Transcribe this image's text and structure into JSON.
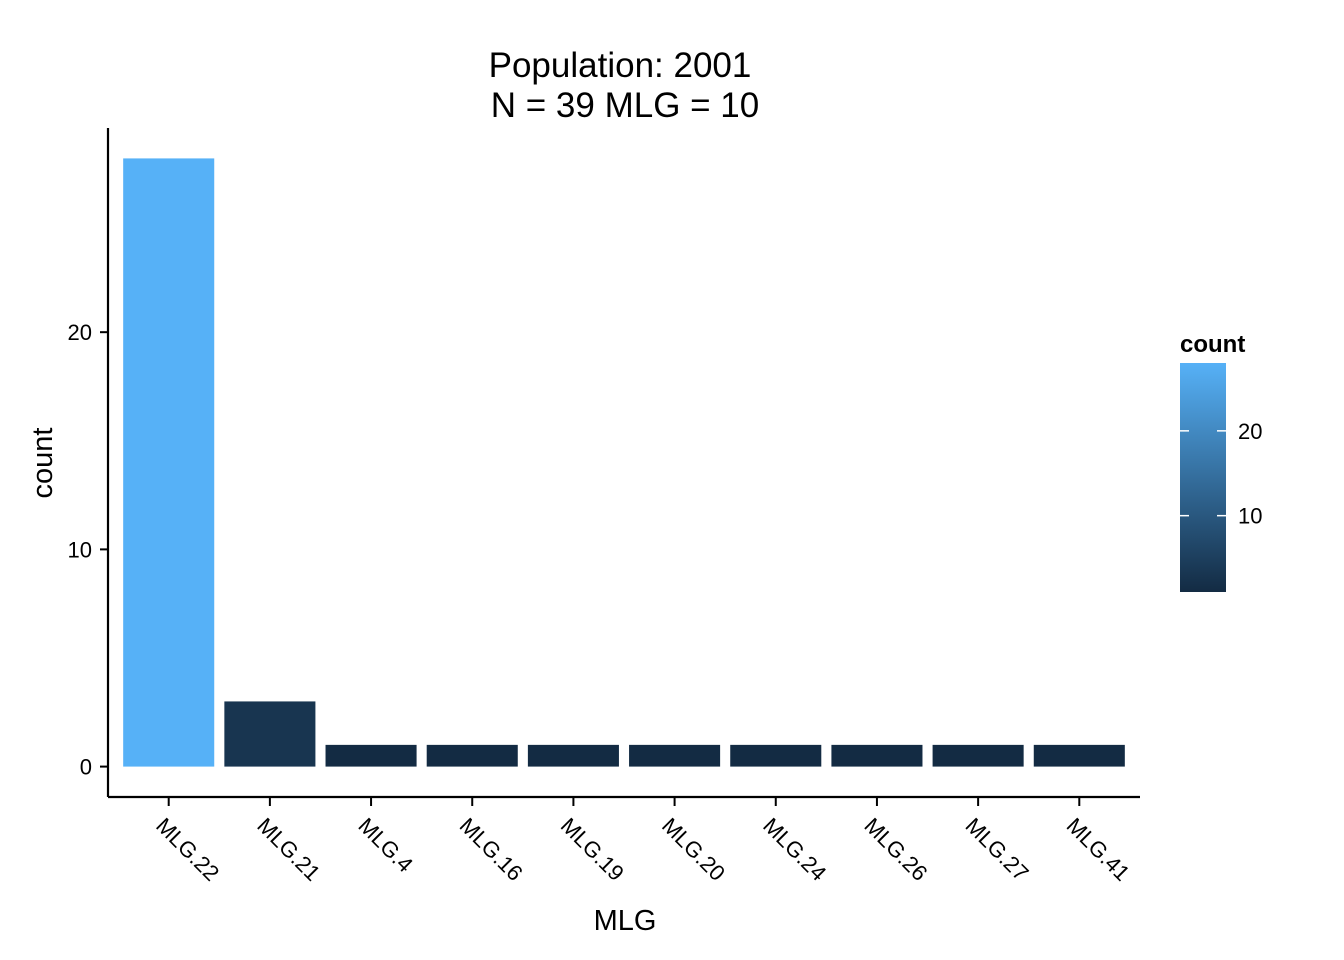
{
  "chart_data": {
    "type": "bar",
    "title_line1": "Population: 2001",
    "title_line2": "N = 39 MLG = 10",
    "xlabel": "MLG",
    "ylabel": "count",
    "categories": [
      "MLG.22",
      "MLG.21",
      "MLG.4",
      "MLG.16",
      "MLG.19",
      "MLG.20",
      "MLG.24",
      "MLG.26",
      "MLG.27",
      "MLG.41"
    ],
    "values": [
      28,
      3,
      1,
      1,
      1,
      1,
      1,
      1,
      1,
      1
    ],
    "ylim": [
      -1.4,
      29.4
    ],
    "yticks": [
      0,
      10,
      20
    ],
    "grid": false,
    "legend": {
      "title": "count",
      "placement": "right",
      "ticks": [
        10,
        20
      ],
      "range": [
        1,
        28
      ],
      "color_low": "#132B43",
      "color_high": "#56B1F7"
    }
  }
}
